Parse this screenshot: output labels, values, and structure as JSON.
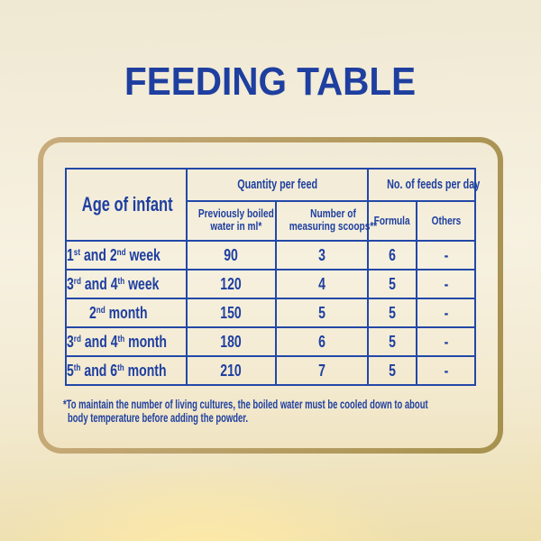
{
  "title": "FEEDING TABLE",
  "colors": {
    "text_blue": "#1e3fa0",
    "table_line_blue": "#2348a8",
    "gold_border_left": "#c9ac7c",
    "gold_border_right": "#a6914e",
    "background_top": "#efe8d2",
    "background_mid": "#f7f1e1",
    "background_bottom": "#eedfad",
    "glow": "#ffeaa6"
  },
  "table": {
    "corner_header": "Age of infant",
    "group_headers": [
      {
        "label": "Quantity per feed",
        "colspan": 2
      },
      {
        "label": "No. of feeds per day",
        "colspan": 2
      }
    ],
    "sub_headers": [
      {
        "label": "Previously boiled water in ml*",
        "lines": [
          "Previously boiled",
          "water in ml*"
        ]
      },
      {
        "label": "Number of measuring scoops**",
        "lines": [
          "Number of",
          "measuring scoops**"
        ]
      },
      {
        "label": "Formula",
        "lines": [
          "Formula"
        ]
      },
      {
        "label": "Others",
        "lines": [
          "Others"
        ]
      }
    ],
    "rows": [
      {
        "age": "1st and 2nd week",
        "water_ml": "90",
        "scoops": "3",
        "formula": "6",
        "others": "-"
      },
      {
        "age": "3rd and 4th week",
        "water_ml": "120",
        "scoops": "4",
        "formula": "5",
        "others": "-"
      },
      {
        "age": "2nd month",
        "water_ml": "150",
        "scoops": "5",
        "formula": "5",
        "others": "-"
      },
      {
        "age": "3rd and 4th month",
        "water_ml": "180",
        "scoops": "6",
        "formula": "5",
        "others": "-"
      },
      {
        "age": "5th and 6th month",
        "water_ml": "210",
        "scoops": "7",
        "formula": "5",
        "others": "-"
      }
    ]
  },
  "footnote": {
    "full_text": "*To maintain the number of living cultures, the boiled water must be cooled down to about body temperature before adding the powder.",
    "lines": [
      "*To maintain the number of living cultures, the boiled water must be cooled down to about",
      "body temperature before adding the powder."
    ]
  }
}
